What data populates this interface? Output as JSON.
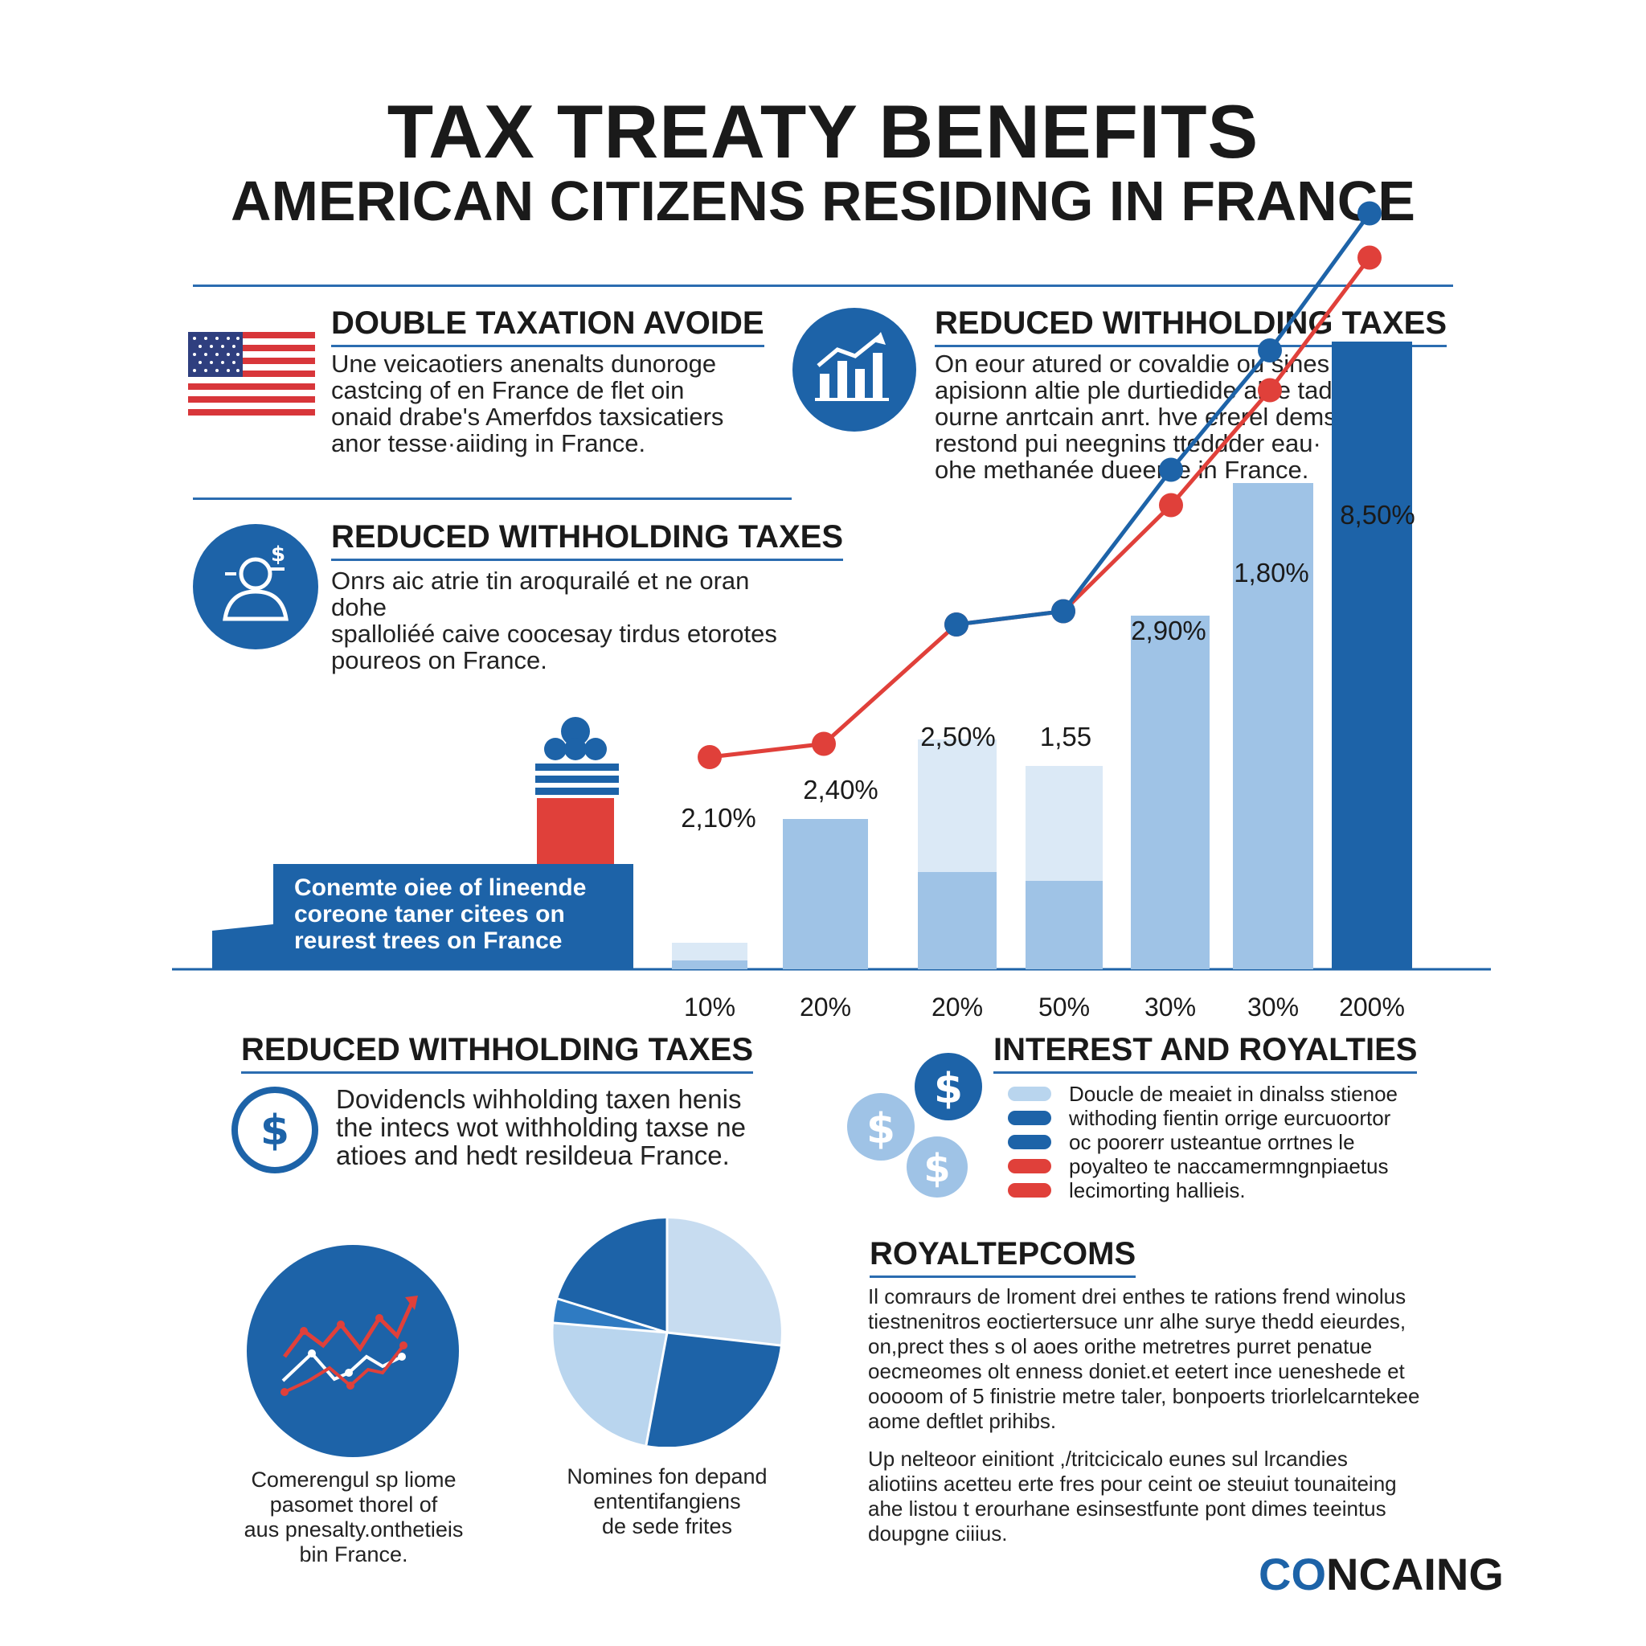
{
  "header": {
    "title": "TAX TREATY BENEFITS",
    "subtitle": "AMERICAN CITIZENS RESIDING IN FRANCE"
  },
  "sections": {
    "double_taxation": {
      "heading": "DOUBLE TAXATION AVOIDE",
      "lines": [
        "Une veicaotiers anenalts dunoroge",
        "castcing of en France de flet oin",
        "onaid drabe's Amerfdos taxsicatiers",
        "anor tesse·aiiding in France."
      ]
    },
    "reduced_withholding_top": {
      "heading": "REDUCED WITHHOLDING TAXES",
      "lines": [
        "On eour atured or covaldie ou sines in",
        "apisionn altie ple durtiedide alhe tads,",
        "ourne anrtcain anrt. hve ererel demsune",
        "restond pui neegnins tteddder eau·",
        "ohe methanée dueente in France."
      ]
    },
    "reduced_withholding_mid": {
      "heading": "REDUCED WITHHOLDING TAXES",
      "lines": [
        "Onrs aic atrie tin aroqurailé et ne oran dohe",
        "spalloliéé caive coocesay tirdus etorotes",
        "poureos on France."
      ]
    },
    "reduced_withholding_bottom": {
      "heading": "REDUCED WITHHOLDING TAXES",
      "lines": [
        "Dovidencls wihholding taxen henis",
        "the intecs wot withholding taxse ne",
        "atioes and hedt resildeua France."
      ]
    },
    "interest_royalties": {
      "heading": "INTEREST AND ROYALTIES",
      "legend": [
        {
          "text": "Doucle de meaiet in dinalss stienoe",
          "color": "#b9d5ee"
        },
        {
          "text": "withoding fientin orrige eurcuoortor",
          "color": "#1d63a8"
        },
        {
          "text": "oc poorerr usteantue orrtnes le",
          "color": "#1d63a8"
        },
        {
          "text": "poyalteo te naccamermngnpiaetus",
          "color": "#e0403a"
        },
        {
          "text": "lecimorting hallieis.",
          "color": "#e0403a"
        }
      ]
    },
    "royaltepcoms": {
      "heading": "ROYALTEPCOMS",
      "para1": [
        "Il comraurs de lroment drei enthes te rations frend winolus",
        "tiestnenitros eoctiertersuce unr alhe surye thedd eieurdes,",
        "on,prect thes s ol aoes orithe metretres purret penatue",
        "oecmeomes olt enness doniet.et eetert ince ueneshede et",
        "ooooom of 5 finistrie metre taler, bonpoerts triorlelcarntekee",
        "aome deftlet prihibs."
      ],
      "para2": [
        "Up nelteoor einitiont ,/tritcicicalo eunes sul lrcandies",
        "aliotiins acetteu erte fres pour ceint oe steuiut tounaiteing",
        "ahe listou t erourhane esinsestfunte pont dimes teeintus",
        "doupgne ciiius."
      ]
    },
    "box_text": [
      "Conemte oiee of lineende",
      "coreone taner citees on",
      "reurest trees on France"
    ]
  },
  "captions": {
    "left": [
      "Comerengul sp liome",
      "pasomet thorel of",
      "aus pnesalty.onthetieis",
      "bin France."
    ],
    "right": [
      "Nomines fon depand",
      "ententifangiens",
      "de sede frites"
    ]
  },
  "brand": {
    "co": "CO",
    "rest": "NCAING"
  },
  "colors": {
    "blue": "#1d63a8",
    "light_blue": "#b9d5ee",
    "pale_blue": "#dbe9f6",
    "mid_blue": "#9fc3e6",
    "red": "#e0403a"
  },
  "chart_data": {
    "type": "bar",
    "categories": [
      "10%",
      "20%",
      "20%",
      "50%",
      "30%",
      "30%",
      "200%"
    ],
    "series": [
      {
        "name": "bars",
        "kind": "bar",
        "values": [
          3,
          17,
          26,
          23,
          40,
          55,
          71
        ]
      },
      {
        "name": "bars_lower",
        "kind": "bar",
        "values": [
          1,
          17,
          11,
          10,
          40,
          55,
          71
        ]
      },
      {
        "name": "red_line",
        "kind": "line",
        "color": "#e0403a",
        "values": [
          24,
          25.5,
          39,
          40.5,
          52.5,
          65.5,
          80.5
        ]
      },
      {
        "name": "blue_line",
        "kind": "line",
        "color": "#1d63a8",
        "values": [
          null,
          null,
          39,
          40.5,
          56.5,
          70,
          85.5
        ]
      }
    ],
    "point_labels": [
      "2,10%",
      "2,40%",
      "2,50%",
      "1,55",
      "2,90%",
      "1,80%",
      "8,50%"
    ],
    "ylim": [
      0,
      100
    ],
    "grid": false,
    "title": "",
    "xlabel": "",
    "ylabel": ""
  }
}
